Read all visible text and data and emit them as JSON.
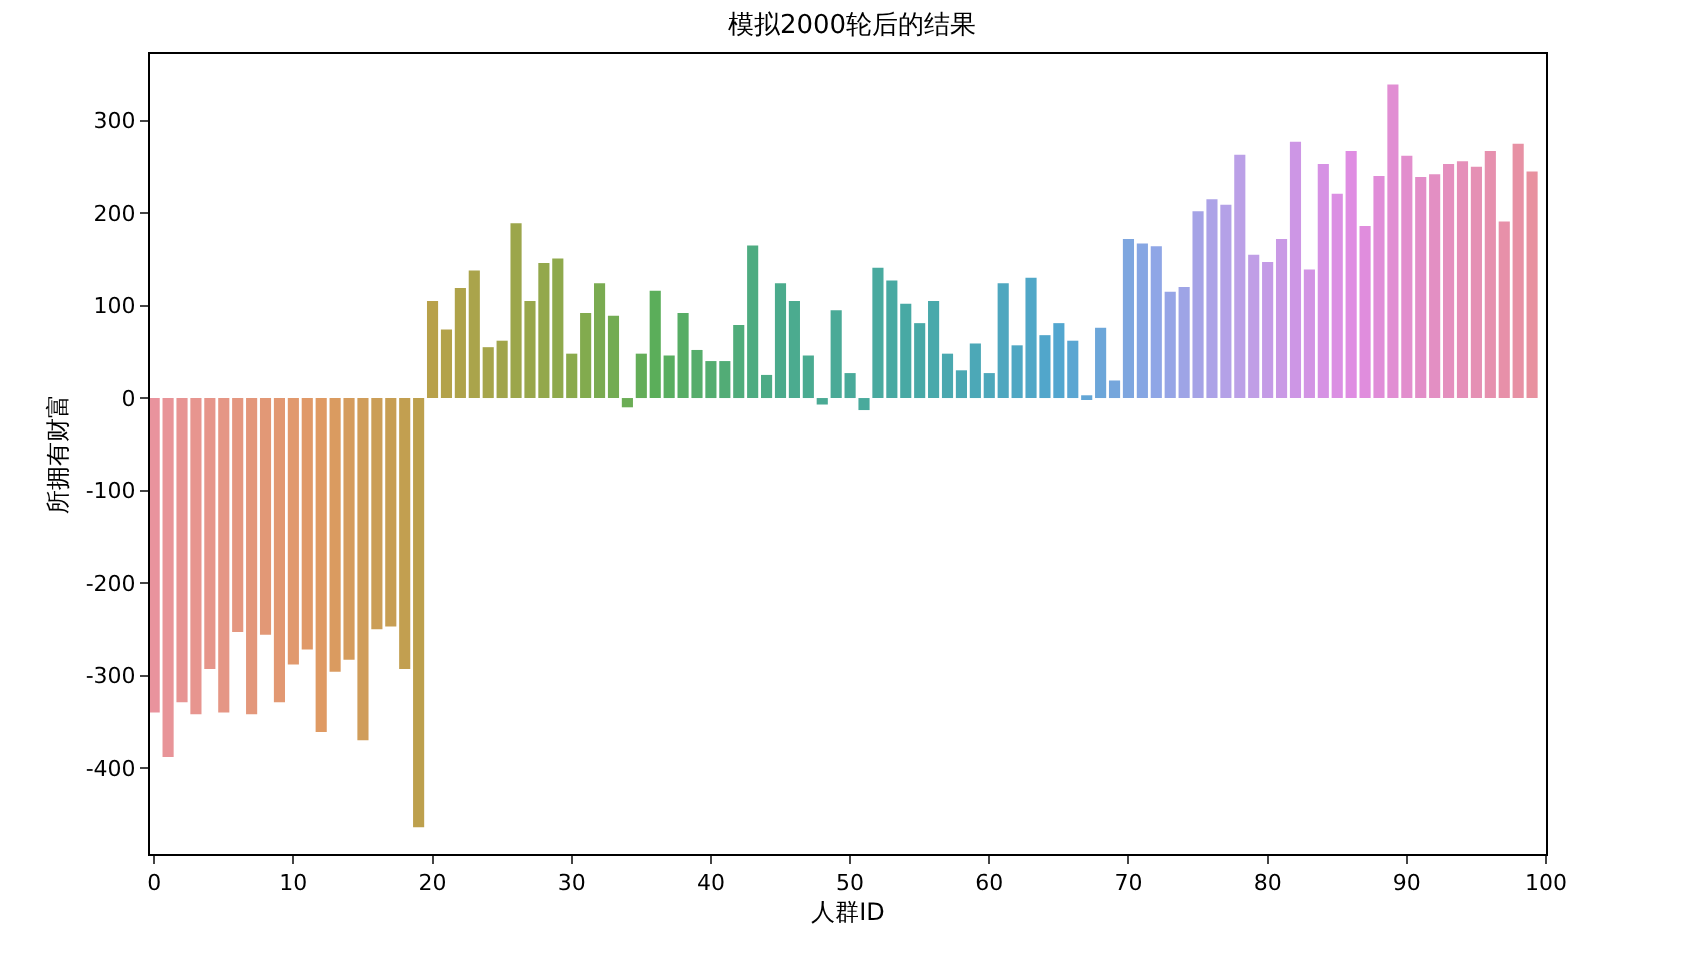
{
  "chart_data": {
    "type": "bar",
    "title": "模拟2000轮后的结果",
    "xlabel": "人群ID",
    "ylabel": "所拥有财富",
    "x": [
      0,
      1,
      2,
      3,
      4,
      5,
      6,
      7,
      8,
      9,
      10,
      11,
      12,
      13,
      14,
      15,
      16,
      17,
      18,
      19,
      20,
      21,
      22,
      23,
      24,
      25,
      26,
      27,
      28,
      29,
      30,
      31,
      32,
      33,
      34,
      35,
      36,
      37,
      38,
      39,
      40,
      41,
      42,
      43,
      44,
      45,
      46,
      47,
      48,
      49,
      50,
      51,
      52,
      53,
      54,
      55,
      56,
      57,
      58,
      59,
      60,
      61,
      62,
      63,
      64,
      65,
      66,
      67,
      68,
      69,
      70,
      71,
      72,
      73,
      74,
      75,
      76,
      77,
      78,
      79,
      80,
      81,
      82,
      83,
      84,
      85,
      86,
      87,
      88,
      89,
      90,
      91,
      92,
      93,
      94,
      95,
      96,
      97,
      98,
      99
    ],
    "values": [
      -340,
      -388,
      -329,
      -342,
      -293,
      -340,
      -253,
      -342,
      -256,
      -329,
      -288,
      -272,
      -361,
      -296,
      -283,
      -370,
      -250,
      -247,
      -293,
      -464,
      105,
      74,
      119,
      138,
      55,
      62,
      189,
      105,
      146,
      151,
      48,
      92,
      124,
      89,
      -10,
      48,
      116,
      46,
      92,
      52,
      40,
      40,
      79,
      165,
      25,
      124,
      105,
      46,
      -7,
      95,
      27,
      -13,
      141,
      127,
      102,
      81,
      105,
      48,
      30,
      59,
      27,
      124,
      57,
      130,
      68,
      81,
      62,
      3,
      76,
      19,
      172,
      167,
      164,
      115,
      120,
      202,
      215,
      209,
      263,
      155,
      147,
      172,
      277,
      139,
      253,
      221,
      267,
      186,
      240,
      339,
      262,
      239,
      242,
      253,
      256,
      250,
      267,
      191,
      275,
      245
    ],
    "colors": [
      "#e9939d",
      "#e89498",
      "#e79493",
      "#e7958f",
      "#e6958a",
      "#e59685",
      "#e49780",
      "#e3977b",
      "#e29876",
      "#e29872",
      "#e1996d",
      "#e09968",
      "#df9a63",
      "#da9b60",
      "#d59c5d",
      "#d09d5a",
      "#cb9e57",
      "#c79e53",
      "#c29f50",
      "#bda04d",
      "#b8a14a",
      "#b3a24a",
      "#afa34a",
      "#aaa44b",
      "#a6a54b",
      "#a1a54b",
      "#9ca64b",
      "#98a74b",
      "#93a84c",
      "#8fa94c",
      "#8aaa4c",
      "#82ab4e",
      "#7aab51",
      "#73ac53",
      "#6bad55",
      "#63ad58",
      "#5bae5a",
      "#59ae60",
      "#57ad65",
      "#56ad6b",
      "#54ad70",
      "#52ac76",
      "#50ac7b",
      "#4eac81",
      "#4dab86",
      "#4bab8c",
      "#4bab8f",
      "#4aab91",
      "#4aaa94",
      "#4aaa97",
      "#49aa9a",
      "#49aa9c",
      "#49aa9f",
      "#48a9a2",
      "#48a9a4",
      "#48a9a7",
      "#49a9ab",
      "#4aa8af",
      "#4ba8b3",
      "#4ca8b7",
      "#4da8bb",
      "#4ea7bf",
      "#4fa7c3",
      "#50a7c7",
      "#51a6cb",
      "#52a6cf",
      "#5ba6d2",
      "#63a6d6",
      "#6ca6d9",
      "#75a6dc",
      "#7ea6df",
      "#86a6e3",
      "#8fa6e6",
      "#96a5e6",
      "#9ea4e6",
      "#a5a3e6",
      "#aca2e7",
      "#b4a1e7",
      "#bba0e7",
      "#c09ee6",
      "#c49be6",
      "#c999e5",
      "#cd96e5",
      "#d294e4",
      "#d692e4",
      "#db8fe3",
      "#df8de2",
      "#e08ddd",
      "#e08dd8",
      "#e18ed3",
      "#e28ecd",
      "#e28ec8",
      "#e38fc3",
      "#e48fbe",
      "#e58fb9",
      "#e590b4",
      "#e690ae",
      "#e790a9",
      "#e791a4",
      "#e8919f"
    ],
    "xlim": [
      -0.3,
      100
    ],
    "xticks": [
      0,
      10,
      20,
      30,
      40,
      50,
      60,
      70,
      80,
      90,
      100
    ],
    "ylim": [
      -493,
      372
    ],
    "yticks": [
      -400,
      -300,
      -200,
      -100,
      0,
      100,
      200,
      300
    ],
    "grid": false
  }
}
